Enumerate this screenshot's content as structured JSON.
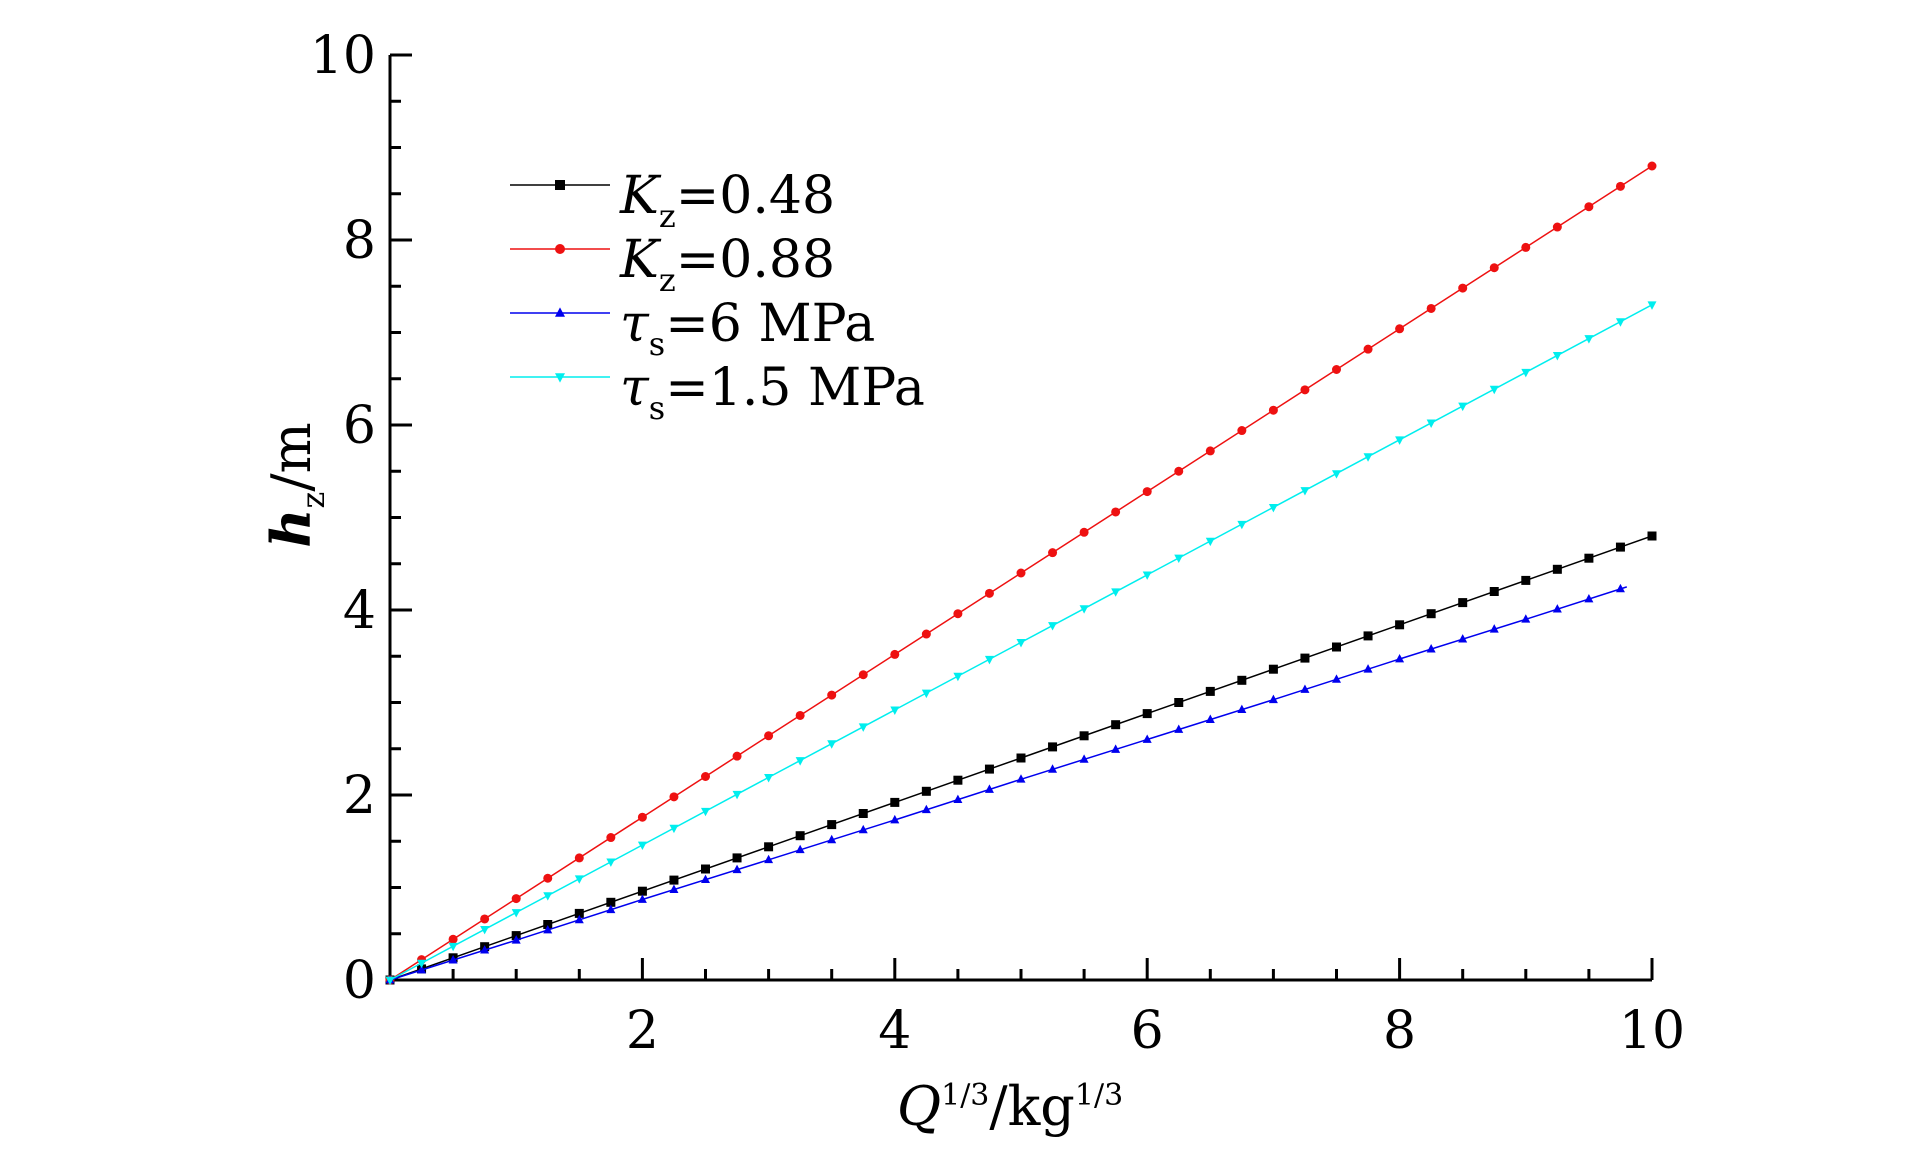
{
  "chart_data": {
    "type": "line",
    "title": "",
    "xlabel": {
      "var": "Q",
      "sup": "1/3",
      "unit_base": "/kg",
      "unit_sup": "1/3"
    },
    "ylabel": {
      "var": "h",
      "sub": "z",
      "unit": "/m"
    },
    "xlim": [
      0,
      10
    ],
    "ylim": [
      0,
      10
    ],
    "x_ticks": [
      "2",
      "4",
      "6",
      "8",
      "10"
    ],
    "y_ticks": [
      "0",
      "2",
      "4",
      "6",
      "8",
      "10"
    ],
    "grid": false,
    "legend_position": "top-left",
    "series": [
      {
        "label": {
          "sym": "K",
          "sub": "z",
          "rest": "=0.48"
        },
        "color": "#000000",
        "marker": "square",
        "points": [
          [
            0,
            0
          ],
          [
            1,
            0.48
          ],
          [
            2,
            0.96
          ],
          [
            3,
            1.44
          ],
          [
            4,
            1.92
          ],
          [
            5,
            2.4
          ],
          [
            6,
            2.88
          ],
          [
            7,
            3.36
          ],
          [
            8,
            3.84
          ],
          [
            9,
            4.32
          ],
          [
            10,
            4.8
          ]
        ]
      },
      {
        "label": {
          "sym": "K",
          "sub": "z",
          "rest": "=0.88"
        },
        "color": "#ee1111",
        "marker": "circle",
        "points": [
          [
            0,
            0
          ],
          [
            1,
            0.88
          ],
          [
            2,
            1.76
          ],
          [
            3,
            2.64
          ],
          [
            4,
            3.52
          ],
          [
            5,
            4.4
          ],
          [
            6,
            5.28
          ],
          [
            7,
            6.16
          ],
          [
            8,
            7.04
          ],
          [
            9,
            7.92
          ],
          [
            10,
            8.8
          ]
        ]
      },
      {
        "label": {
          "sym": "τ",
          "sub": "s",
          "rest": "=6 MPa"
        },
        "color": "#0000ee",
        "marker": "triangle-up",
        "points": [
          [
            0,
            0
          ],
          [
            1,
            0.43
          ],
          [
            2,
            0.87
          ],
          [
            3,
            1.3
          ],
          [
            4,
            1.73
          ],
          [
            5,
            2.17
          ],
          [
            6,
            2.6
          ],
          [
            7,
            3.03
          ],
          [
            8,
            3.47
          ],
          [
            9,
            3.9
          ],
          [
            9.8,
            4.25
          ]
        ]
      },
      {
        "label": {
          "sym": "τ",
          "sub": "s",
          "rest": "=1.5 MPa"
        },
        "color": "#00eeee",
        "marker": "triangle-down",
        "points": [
          [
            0,
            0
          ],
          [
            1,
            0.73
          ],
          [
            2,
            1.46
          ],
          [
            3,
            2.19
          ],
          [
            4,
            2.92
          ],
          [
            5,
            3.65
          ],
          [
            6,
            4.38
          ],
          [
            7,
            5.11
          ],
          [
            8,
            5.84
          ],
          [
            9,
            6.57
          ],
          [
            10,
            7.3
          ]
        ]
      }
    ]
  }
}
